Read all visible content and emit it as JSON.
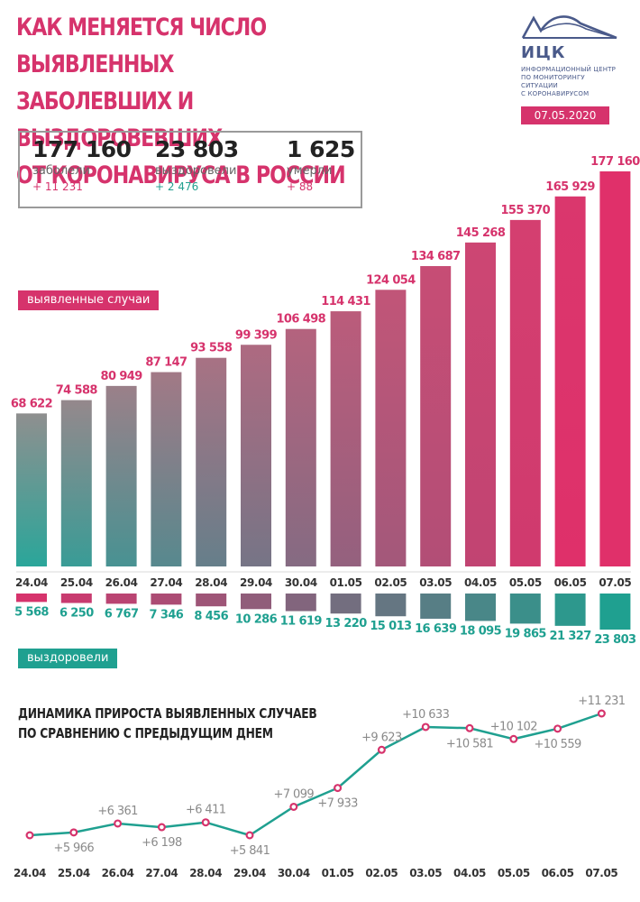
{
  "header": {
    "title_lines": [
      "КАК МЕНЯЕТСЯ ЧИСЛО ВЫЯВЛЕННЫХ",
      "ЗАБОЛЕВШИХ И ВЫЗДОРОВЕВШИХ",
      "ОТ КОРОНАВИРУСА В РОССИИ"
    ],
    "logo_text": "ИЦК",
    "logo_subtitle": [
      "ИНФОРМАЦИОННЫЙ ЦЕНТР",
      "ПО МОНИТОРИНГУ СИТУАЦИИ",
      "С КОРОНАВИРУСОМ"
    ],
    "date": "07.05.2020"
  },
  "stats": {
    "infected": {
      "value": "177 160",
      "label": "заболели",
      "change": "+ 11 231"
    },
    "recovered": {
      "value": "23 803",
      "label": "выздоровели",
      "change": "+ 2 476"
    },
    "died": {
      "value": "1 625",
      "label": "умерли",
      "change": "+ 88"
    }
  },
  "legend": {
    "cases": "выявленные случаи",
    "recovered": "выздоровели"
  },
  "subchart_title_lines": [
    "ДИНАМИКА ПРИРОСТА ВЫЯВЛЕННЫХ СЛУЧАЕВ",
    "ПО СРАВНЕНИЮ С ПРЕДЫДУЩИМ ДНЕМ"
  ],
  "colors": {
    "accent": "#d6336c",
    "teal": "#1fa090",
    "gray": "#8a8a8a"
  },
  "chart_data": [
    {
      "type": "bar",
      "title": "выявленные случаи",
      "categories": [
        "24.04",
        "25.04",
        "26.04",
        "27.04",
        "28.04",
        "29.04",
        "30.04",
        "01.05",
        "02.05",
        "03.05",
        "04.05",
        "05.05",
        "06.05",
        "07.05"
      ],
      "values": [
        68622,
        74588,
        80949,
        87147,
        93558,
        99399,
        106498,
        114431,
        124054,
        134687,
        145268,
        155370,
        165929,
        177160
      ],
      "labels": [
        "68 622",
        "74 588",
        "80 949",
        "87 147",
        "93 558",
        "99 399",
        "106 498",
        "114 431",
        "124 054",
        "134 687",
        "145 268",
        "155 370",
        "165 929",
        "177 160"
      ]
    },
    {
      "type": "bar",
      "title": "выздоровели",
      "categories": [
        "24.04",
        "25.04",
        "26.04",
        "27.04",
        "28.04",
        "29.04",
        "30.04",
        "01.05",
        "02.05",
        "03.05",
        "04.05",
        "05.05",
        "06.05",
        "07.05"
      ],
      "values": [
        5568,
        6250,
        6767,
        7346,
        8456,
        10286,
        11619,
        13220,
        15013,
        16639,
        18095,
        19865,
        21327,
        23803
      ],
      "labels": [
        "5 568",
        "6 250",
        "6 767",
        "7 346",
        "8 456",
        "10 286",
        "11 619",
        "13 220",
        "15 013",
        "16 639",
        "18 095",
        "19 865",
        "21 327",
        "23 803"
      ]
    },
    {
      "type": "line",
      "title": "ДИНАМИКА ПРИРОСТА ВЫЯВЛЕННЫХ СЛУЧАЕВ ПО СРАВНЕНИЮ С ПРЕДЫДУЩИМ ДНЕМ",
      "categories": [
        "24.04",
        "25.04",
        "26.04",
        "27.04",
        "28.04",
        "29.04",
        "30.04",
        "01.05",
        "02.05",
        "03.05",
        "04.05",
        "05.05",
        "06.05",
        "07.05"
      ],
      "values": [
        null,
        5966,
        6361,
        6198,
        6411,
        5841,
        7099,
        7933,
        9623,
        10633,
        10581,
        10102,
        10559,
        11231
      ],
      "labels": [
        "",
        "+5 966",
        "+6 361",
        "+6 198",
        "+6 411",
        "+5 841",
        "+7 099",
        "+7 933",
        "+9 623",
        "+10 633",
        "+10 581",
        "+10 102",
        "+10 559",
        "+11 231"
      ],
      "label_positions": [
        "",
        "below",
        "above",
        "below",
        "above",
        "below",
        "above",
        "below",
        "above",
        "above",
        "below",
        "above",
        "below",
        "above"
      ]
    }
  ]
}
